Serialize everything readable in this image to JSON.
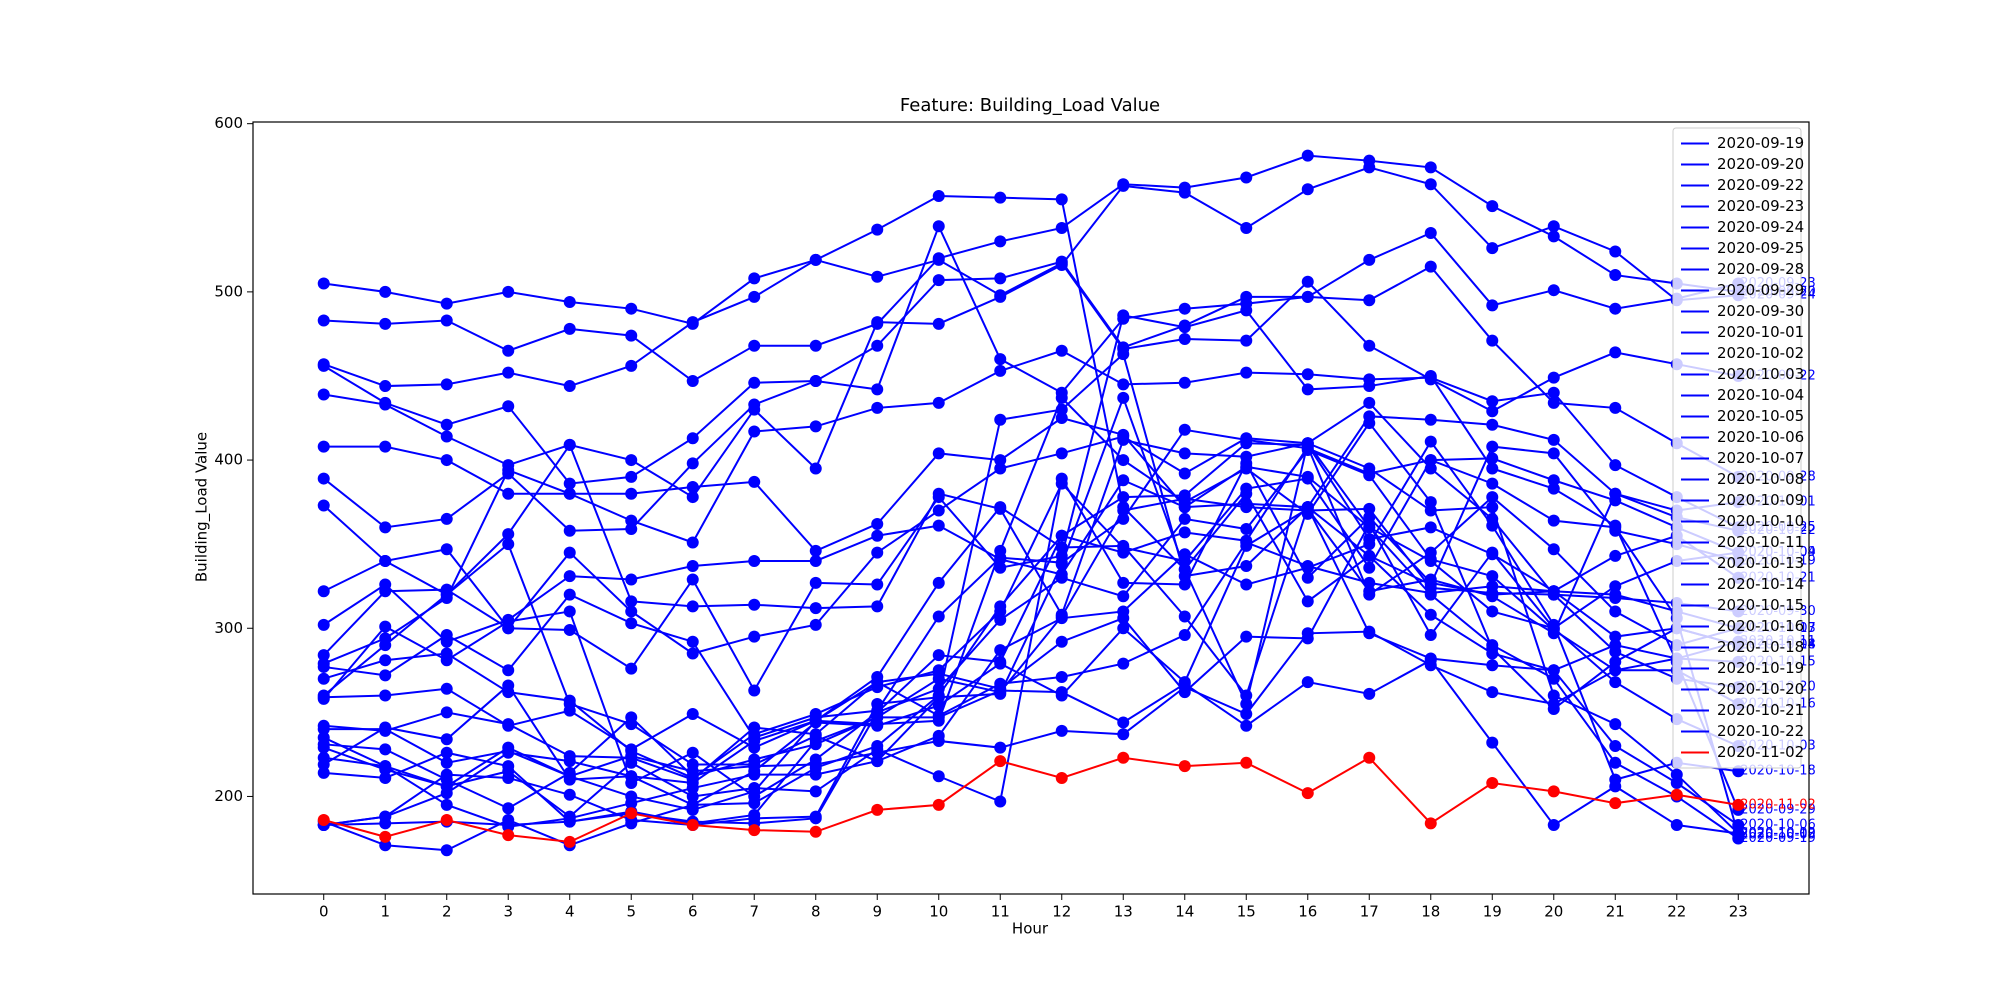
{
  "chart_data": {
    "type": "line",
    "title": "Feature: Building_Load Value",
    "x_label": "Hour",
    "y_label": "Building_Load Value",
    "x": [
      0,
      1,
      2,
      3,
      4,
      5,
      6,
      7,
      8,
      9,
      10,
      11,
      12,
      13,
      14,
      15,
      16,
      17,
      18,
      19,
      20,
      21,
      22,
      23
    ],
    "xlim": [
      -1.15,
      24.15
    ],
    "xticks": [
      0,
      1,
      2,
      3,
      4,
      5,
      6,
      7,
      8,
      9,
      10,
      11,
      12,
      13,
      14,
      15,
      16,
      17,
      18,
      19,
      20,
      21,
      22,
      23
    ],
    "ylim": [
      142,
      601
    ],
    "yticks": [
      200,
      300,
      400,
      500,
      600
    ],
    "grid": false,
    "legend": "upper right",
    "end_labels": true,
    "series": [
      {
        "name": "2020-09-19",
        "color": "#0000ff",
        "values": [
          505,
          500,
          493,
          500,
          494,
          490,
          481,
          508,
          519,
          537,
          557,
          556,
          555,
          372,
          335,
          255,
          410,
          360,
          320,
          290,
          270,
          220,
          200,
          175
        ]
      },
      {
        "name": "2020-09-20",
        "color": "#0000ff",
        "values": [
          483,
          481,
          483,
          465,
          478,
          474,
          447,
          468,
          468,
          481,
          520,
          530,
          538,
          564,
          562,
          568,
          581,
          578,
          574,
          551,
          533,
          510,
          505,
          500
        ]
      },
      {
        "name": "2020-09-22",
        "color": "#0000ff",
        "values": [
          457,
          444,
          445,
          452,
          444,
          456,
          482,
          497,
          519,
          509,
          519,
          498,
          517,
          466,
          472,
          471,
          506,
          468,
          448,
          429,
          449,
          464,
          457,
          450
        ]
      },
      {
        "name": "2020-09-23",
        "color": "#0000ff",
        "values": [
          456,
          434,
          421,
          432,
          386,
          390,
          413,
          446,
          447,
          442,
          539,
          460,
          440,
          484,
          490,
          493,
          497,
          519,
          535,
          492,
          501,
          490,
          496,
          505
        ]
      },
      {
        "name": "2020-09-24",
        "color": "#0000ff",
        "values": [
          439,
          433,
          414,
          397,
          409,
          400,
          378,
          430,
          395,
          482,
          481,
          497,
          516,
          563,
          559,
          538,
          561,
          574,
          564,
          526,
          539,
          524,
          495,
          498
        ]
      },
      {
        "name": "2020-09-25",
        "color": "#0000ff",
        "values": [
          408,
          408,
          400,
          380,
          380,
          364,
          351,
          417,
          420,
          431,
          434,
          453,
          465,
          445,
          446,
          452,
          451,
          448,
          449,
          435,
          440,
          397,
          378,
          360
        ]
      },
      {
        "name": "2020-09-28",
        "color": "#0000ff",
        "values": [
          389,
          360,
          365,
          392,
          358,
          359,
          398,
          433,
          447,
          468,
          507,
          508,
          518,
          467,
          480,
          497,
          497,
          495,
          515,
          471,
          434,
          431,
          410,
          390
        ]
      },
      {
        "name": "2020-09-29",
        "color": "#0000ff",
        "values": [
          373,
          340,
          347,
          300,
          299,
          276,
          329,
          263,
          327,
          326,
          378,
          336,
          343,
          486,
          479,
          489,
          442,
          444,
          450,
          395,
          383,
          361,
          280,
          192
        ]
      },
      {
        "name": "2020-09-30",
        "color": "#0000ff",
        "values": [
          322,
          340,
          320,
          356,
          409,
          316,
          313,
          314,
          312,
          313,
          380,
          371,
          308,
          412,
          404,
          402,
          410,
          434,
          395,
          365,
          320,
          318,
          315,
          310
        ]
      },
      {
        "name": "2020-10-01",
        "color": "#0000ff",
        "values": [
          302,
          326,
          292,
          305,
          331,
          329,
          337,
          340,
          340,
          355,
          361,
          341,
          332,
          388,
          372,
          374,
          372,
          426,
          424,
          421,
          412,
          380,
          370,
          375
        ]
      },
      {
        "name": "2020-10-02",
        "color": "#0000ff",
        "values": [
          284,
          322,
          323,
          300,
          345,
          310,
          285,
          295,
          302,
          345,
          370,
          395,
          404,
          414,
          392,
          413,
          410,
          395,
          370,
          372,
          260,
          243,
          213,
          178
        ]
      },
      {
        "name": "2020-10-03",
        "color": "#0000ff",
        "values": [
          279,
          294,
          318,
          394,
          380,
          380,
          384,
          387,
          346,
          362,
          404,
          400,
          425,
          415,
          372,
          396,
          390,
          360,
          340,
          310,
          300,
          268,
          246,
          230
        ]
      },
      {
        "name": "2020-10-04",
        "color": "#0000ff",
        "values": [
          277,
          272,
          296,
          275,
          320,
          303,
          292,
          235,
          247,
          251,
          307,
          342,
          339,
          365,
          418,
          412,
          407,
          392,
          400,
          401,
          388,
          376,
          360,
          345
        ]
      },
      {
        "name": "2020-10-05",
        "color": "#0000ff",
        "values": [
          270,
          281,
          285,
          262,
          257,
          227,
          211,
          237,
          249,
          265,
          275,
          310,
          386,
          348,
          340,
          383,
          389,
          336,
          400,
          386,
          364,
          360,
          306,
          177
        ]
      },
      {
        "name": "2020-10-06",
        "color": "#0000ff",
        "values": [
          259,
          260,
          264,
          242,
          251,
          228,
          249,
          229,
          245,
          271,
          327,
          372,
          348,
          349,
          307,
          260,
          372,
          297,
          282,
          278,
          275,
          230,
          208,
          183
        ]
      },
      {
        "name": "2020-10-07",
        "color": "#0000ff",
        "values": [
          258,
          301,
          281,
          304,
          310,
          208,
          226,
          200,
          222,
          250,
          284,
          280,
          355,
          378,
          379,
          410,
          409,
          353,
          360,
          344,
          322,
          320,
          310,
          300
        ]
      },
      {
        "name": "2020-10-08",
        "color": "#0000ff",
        "values": [
          242,
          239,
          250,
          243,
          224,
          223,
          210,
          241,
          237,
          268,
          248,
          267,
          271,
          279,
          296,
          351,
          337,
          327,
          321,
          325,
          322,
          295,
          300,
          290
        ]
      },
      {
        "name": "2020-10-09",
        "color": "#0000ff",
        "values": [
          240,
          240,
          220,
          227,
          212,
          200,
          192,
          203,
          245,
          268,
          273,
          264,
          292,
          306,
          262,
          295,
          294,
          362,
          296,
          345,
          300,
          325,
          340,
          345
        ]
      },
      {
        "name": "2020-10-10",
        "color": "#0000ff",
        "values": [
          231,
          228,
          210,
          193,
          214,
          247,
          212,
          222,
          231,
          247,
          247,
          263,
          262,
          244,
          267,
          242,
          268,
          261,
          281,
          232,
          183,
          206,
          183,
          178
        ]
      },
      {
        "name": "2020-10-11",
        "color": "#0000ff",
        "values": [
          229,
          216,
          206,
          229,
          212,
          224,
          215,
          218,
          219,
          226,
          233,
          229,
          239,
          237,
          265,
          249,
          297,
          298,
          278,
          262,
          255,
          275,
          282,
          292
        ]
      },
      {
        "name": "2020-10-13",
        "color": "#0000ff",
        "values": [
          185,
          171,
          168,
          186,
          171,
          184,
          195,
          196,
          217,
          230,
          260,
          313,
          355,
          345,
          357,
          352,
          408,
          320,
          345,
          378,
          347,
          310,
          290,
          300
        ]
      },
      {
        "name": "2020-10-14",
        "color": "#0000ff",
        "values": [
          183,
          188,
          202,
          226,
          221,
          212,
          208,
          233,
          245,
          243,
          245,
          346,
          437,
          400,
          375,
          395,
          368,
          422,
          375,
          288,
          252,
          280,
          300,
          290
        ]
      },
      {
        "name": "2020-10-15",
        "color": "#0000ff",
        "values": [
          183,
          188,
          213,
          211,
          201,
          186,
          183,
          187,
          188,
          255,
          259,
          261,
          338,
          437,
          335,
          380,
          316,
          343,
          308,
          285,
          275,
          290,
          282,
          280
        ]
      },
      {
        "name": "2020-10-16",
        "color": "#0000ff",
        "values": [
          183,
          184,
          185,
          183,
          185,
          190,
          185,
          184,
          187,
          250,
          264,
          305,
          330,
          319,
          365,
          359,
          406,
          391,
          341,
          331,
          299,
          275,
          275,
          255
        ]
      },
      {
        "name": "2020-10-18",
        "color": "#0000ff",
        "values": [
          260,
          290,
          320,
          350,
          255,
          243,
          219,
          219,
          236,
          221,
          236,
          287,
          306,
          310,
          344,
          326,
          336,
          350,
          411,
          361,
          302,
          210,
          220,
          215
        ]
      },
      {
        "name": "2020-10-19",
        "color": "#0000ff",
        "values": [
          223,
          218,
          195,
          182,
          187,
          196,
          205,
          213,
          213,
          221,
          259,
          424,
          430,
          463,
          331,
          337,
          372,
          343,
          326,
          408,
          404,
          358,
          350,
          340
        ]
      },
      {
        "name": "2020-10-20",
        "color": "#0000ff",
        "values": [
          214,
          211,
          226,
          218,
          185,
          191,
          184,
          189,
          233,
          247,
          270,
          262,
          307,
          370,
          377,
          372,
          370,
          371,
          324,
          321,
          320,
          286,
          270,
          265
        ]
      },
      {
        "name": "2020-10-21",
        "color": "#0000ff",
        "values": [
          235,
          218,
          206,
          215,
          188,
          220,
          200,
          205,
          203,
          228,
          212,
          197,
          389,
          327,
          326,
          398,
          330,
          366,
          327,
          320,
          322,
          343,
          355,
          330
        ]
      },
      {
        "name": "2020-10-22",
        "color": "#0000ff",
        "values": [
          219,
          241,
          234,
          266,
          210,
          212,
          195,
          215,
          244,
          242,
          254,
          279,
          260,
          300,
          268,
          349,
          371,
          322,
          329,
          319,
          297,
          380,
          366,
          358
        ]
      },
      {
        "name": "2020-11-02",
        "color": "#ff0000",
        "values": [
          186,
          176,
          186,
          177,
          173,
          190,
          183,
          180,
          179,
          192,
          195,
          221,
          211,
          223,
          218,
          220,
          202,
          223,
          184,
          208,
          203,
          196,
          201,
          195
        ]
      }
    ]
  }
}
